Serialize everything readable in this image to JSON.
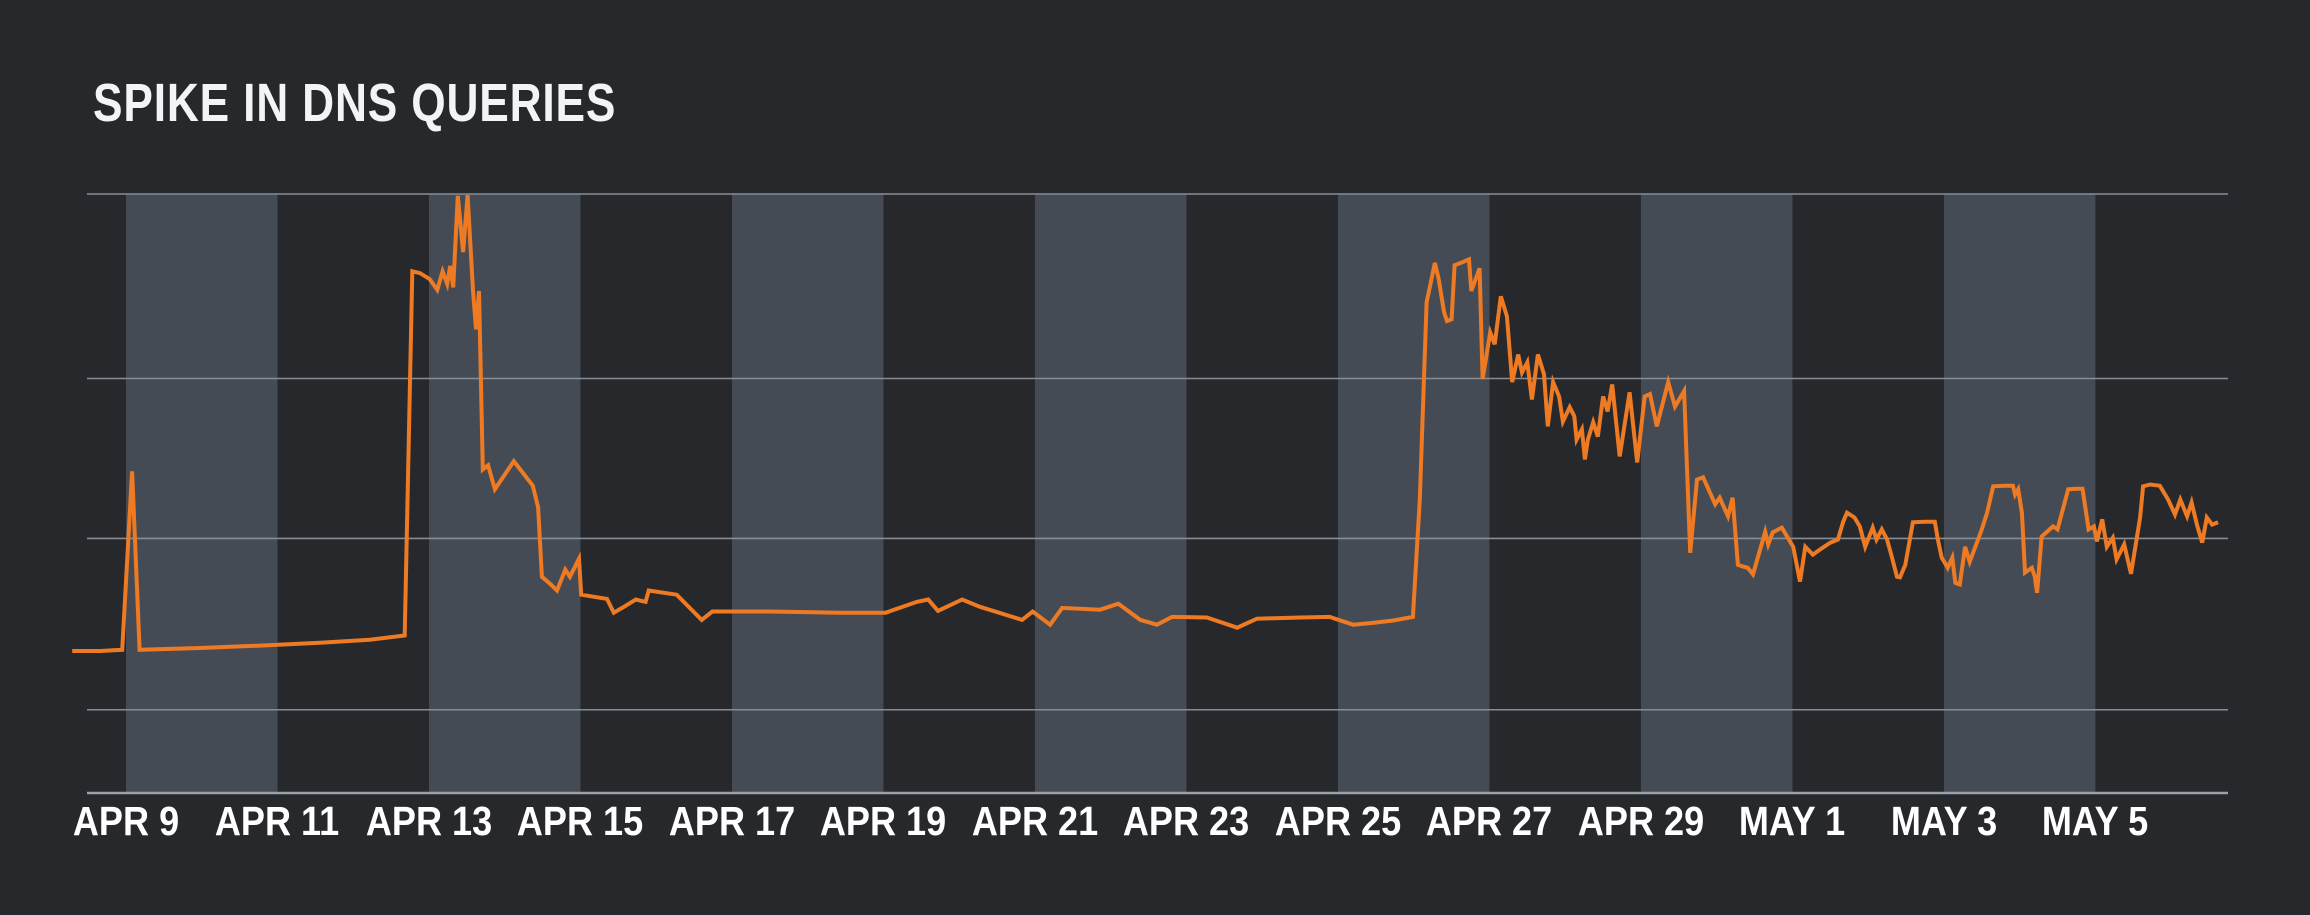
{
  "title": "SPIKE IN DNS QUERIES",
  "colors": {
    "background": "#26282c",
    "weekend_band": "#454b54",
    "gridline": "#868d95",
    "axis_line": "#9aa1a9",
    "line": "#ee7b23",
    "title_text": "#f3f4f6",
    "tick_text": "#ffffff"
  },
  "chart_data": {
    "type": "line",
    "title": "SPIKE IN DNS QUERIES",
    "xlabel": "",
    "ylabel": "",
    "legend_position": "none",
    "x_unit": "days (0 = APR 9, fractional = intra-day samples)",
    "x_range_days": [
      -0.75,
      27.75
    ],
    "y_axis_note": "no numeric labels shown; values are relative volume 0-100 (bottom axis to top gridline)",
    "ylim": [
      0,
      100
    ],
    "gridline_levels_pct": [
      0,
      13.9,
      42.5,
      69.2,
      100
    ],
    "grid": "horizontal only",
    "shaded_band_day_ranges": [
      [
        0,
        2
      ],
      [
        4,
        6
      ],
      [
        8,
        10
      ],
      [
        12,
        14
      ],
      [
        16,
        18
      ],
      [
        20,
        22
      ],
      [
        24,
        26
      ]
    ],
    "x_ticks": [
      {
        "label": "APR 9",
        "day": 0
      },
      {
        "label": "APR 11",
        "day": 2
      },
      {
        "label": "APR 13",
        "day": 4
      },
      {
        "label": "APR 15",
        "day": 6
      },
      {
        "label": "APR 17",
        "day": 8
      },
      {
        "label": "APR 19",
        "day": 10
      },
      {
        "label": "APR 21",
        "day": 12
      },
      {
        "label": "APR 23",
        "day": 14
      },
      {
        "label": "APR 25",
        "day": 16
      },
      {
        "label": "APR 27",
        "day": 18
      },
      {
        "label": "APR 29",
        "day": 20
      },
      {
        "label": "MAY 1",
        "day": 22
      },
      {
        "label": "MAY 3",
        "day": 24
      },
      {
        "label": "MAY 5",
        "day": 26
      }
    ],
    "series": [
      {
        "name": "DNS queries",
        "color": "#ee7b23",
        "points": [
          [
            -0.71,
            23.7
          ],
          [
            -0.34,
            23.7
          ],
          [
            -0.05,
            23.9
          ],
          [
            0.08,
            53.7
          ],
          [
            0.18,
            23.9
          ],
          [
            0.98,
            24.2
          ],
          [
            1.77,
            24.6
          ],
          [
            2.56,
            25.1
          ],
          [
            3.22,
            25.6
          ],
          [
            3.68,
            26.3
          ],
          [
            3.78,
            87.1
          ],
          [
            3.88,
            86.8
          ],
          [
            4.01,
            85.8
          ],
          [
            4.11,
            84.0
          ],
          [
            4.18,
            87.1
          ],
          [
            4.24,
            85.0
          ],
          [
            4.28,
            88.0
          ],
          [
            4.32,
            84.4
          ],
          [
            4.38,
            99.7
          ],
          [
            4.45,
            90.3
          ],
          [
            4.51,
            99.8
          ],
          [
            4.58,
            84.1
          ],
          [
            4.62,
            77.4
          ],
          [
            4.66,
            83.8
          ],
          [
            4.71,
            54.0
          ],
          [
            4.78,
            54.7
          ],
          [
            4.87,
            50.7
          ],
          [
            5.12,
            55.4
          ],
          [
            5.37,
            51.3
          ],
          [
            5.44,
            47.7
          ],
          [
            5.49,
            36.1
          ],
          [
            5.6,
            34.9
          ],
          [
            5.69,
            33.8
          ],
          [
            5.8,
            37.3
          ],
          [
            5.86,
            36.1
          ],
          [
            5.98,
            39.1
          ],
          [
            6.01,
            33.1
          ],
          [
            6.35,
            32.4
          ],
          [
            6.44,
            30.1
          ],
          [
            6.55,
            30.9
          ],
          [
            6.73,
            32.3
          ],
          [
            6.86,
            31.9
          ],
          [
            6.9,
            33.8
          ],
          [
            7.27,
            33.1
          ],
          [
            7.6,
            28.9
          ],
          [
            7.74,
            30.3
          ],
          [
            8.5,
            30.3
          ],
          [
            9.43,
            30.1
          ],
          [
            10.03,
            30.1
          ],
          [
            10.44,
            31.9
          ],
          [
            10.59,
            32.3
          ],
          [
            10.72,
            30.4
          ],
          [
            11.04,
            32.3
          ],
          [
            11.27,
            31.1
          ],
          [
            11.83,
            28.9
          ],
          [
            11.97,
            30.3
          ],
          [
            12.2,
            28.1
          ],
          [
            12.36,
            30.9
          ],
          [
            12.86,
            30.6
          ],
          [
            13.1,
            31.6
          ],
          [
            13.39,
            28.9
          ],
          [
            13.61,
            28.1
          ],
          [
            13.81,
            29.4
          ],
          [
            14.27,
            29.3
          ],
          [
            14.67,
            27.6
          ],
          [
            14.93,
            29.1
          ],
          [
            15.5,
            29.3
          ],
          [
            15.89,
            29.4
          ],
          [
            16.2,
            28.1
          ],
          [
            16.46,
            28.4
          ],
          [
            16.73,
            28.8
          ],
          [
            16.99,
            29.4
          ],
          [
            17.08,
            49.0
          ],
          [
            17.17,
            81.9
          ],
          [
            17.28,
            88.5
          ],
          [
            17.33,
            85.8
          ],
          [
            17.4,
            80.3
          ],
          [
            17.44,
            78.8
          ],
          [
            17.5,
            79.1
          ],
          [
            17.54,
            88.1
          ],
          [
            17.64,
            88.6
          ],
          [
            17.73,
            89.1
          ],
          [
            17.76,
            83.8
          ],
          [
            17.87,
            87.6
          ],
          [
            17.91,
            69.1
          ],
          [
            18.01,
            76.9
          ],
          [
            18.07,
            74.9
          ],
          [
            18.15,
            82.9
          ],
          [
            18.23,
            79.6
          ],
          [
            18.3,
            68.6
          ],
          [
            18.38,
            73.2
          ],
          [
            18.43,
            70.2
          ],
          [
            18.5,
            71.9
          ],
          [
            18.56,
            65.7
          ],
          [
            18.64,
            73.2
          ],
          [
            18.72,
            69.9
          ],
          [
            18.77,
            61.2
          ],
          [
            18.84,
            68.6
          ],
          [
            18.92,
            66.2
          ],
          [
            18.97,
            62.0
          ],
          [
            19.06,
            64.4
          ],
          [
            19.12,
            62.9
          ],
          [
            19.15,
            59.0
          ],
          [
            19.22,
            60.7
          ],
          [
            19.26,
            55.7
          ],
          [
            19.3,
            59.0
          ],
          [
            19.37,
            61.9
          ],
          [
            19.43,
            59.5
          ],
          [
            19.5,
            66.2
          ],
          [
            19.56,
            63.7
          ],
          [
            19.62,
            68.2
          ],
          [
            19.72,
            56.2
          ],
          [
            19.85,
            66.9
          ],
          [
            19.95,
            55.2
          ],
          [
            20.05,
            66.2
          ],
          [
            20.12,
            66.6
          ],
          [
            20.21,
            61.2
          ],
          [
            20.36,
            68.6
          ],
          [
            20.45,
            64.5
          ],
          [
            20.57,
            67.1
          ],
          [
            20.65,
            40.1
          ],
          [
            20.74,
            52.3
          ],
          [
            20.82,
            52.7
          ],
          [
            20.98,
            48.2
          ],
          [
            21.04,
            49.3
          ],
          [
            21.15,
            46.2
          ],
          [
            21.21,
            49.3
          ],
          [
            21.28,
            38.1
          ],
          [
            21.35,
            37.8
          ],
          [
            21.41,
            37.6
          ],
          [
            21.48,
            36.5
          ],
          [
            21.64,
            43.6
          ],
          [
            21.68,
            41.5
          ],
          [
            21.74,
            43.5
          ],
          [
            21.86,
            44.3
          ],
          [
            22.01,
            41.1
          ],
          [
            22.1,
            35.3
          ],
          [
            22.17,
            41.1
          ],
          [
            22.27,
            39.8
          ],
          [
            22.36,
            40.6
          ],
          [
            22.5,
            41.8
          ],
          [
            22.6,
            42.3
          ],
          [
            22.67,
            45.3
          ],
          [
            22.72,
            46.8
          ],
          [
            22.82,
            46.0
          ],
          [
            22.89,
            44.5
          ],
          [
            22.96,
            41.1
          ],
          [
            23.06,
            44.3
          ],
          [
            23.11,
            42.3
          ],
          [
            23.18,
            44.0
          ],
          [
            23.25,
            42.3
          ],
          [
            23.31,
            39.5
          ],
          [
            23.38,
            36.1
          ],
          [
            23.42,
            36.0
          ],
          [
            23.49,
            38.1
          ],
          [
            23.59,
            45.2
          ],
          [
            23.75,
            45.3
          ],
          [
            23.88,
            45.3
          ],
          [
            23.92,
            42.3
          ],
          [
            23.97,
            39.3
          ],
          [
            24.05,
            37.6
          ],
          [
            24.11,
            39.3
          ],
          [
            24.15,
            35.1
          ],
          [
            24.21,
            34.8
          ],
          [
            24.28,
            41.1
          ],
          [
            24.34,
            38.6
          ],
          [
            24.45,
            42.3
          ],
          [
            24.5,
            44.0
          ],
          [
            24.57,
            46.8
          ],
          [
            24.65,
            51.2
          ],
          [
            24.81,
            51.3
          ],
          [
            24.91,
            51.3
          ],
          [
            24.94,
            49.8
          ],
          [
            24.98,
            50.7
          ],
          [
            25.03,
            46.8
          ],
          [
            25.07,
            36.8
          ],
          [
            25.16,
            37.6
          ],
          [
            25.2,
            36.1
          ],
          [
            25.23,
            33.4
          ],
          [
            25.29,
            42.8
          ],
          [
            25.44,
            44.5
          ],
          [
            25.5,
            44.0
          ],
          [
            25.64,
            50.7
          ],
          [
            25.75,
            50.8
          ],
          [
            25.83,
            50.8
          ],
          [
            25.91,
            44.0
          ],
          [
            25.98,
            44.5
          ],
          [
            26.02,
            42.0
          ],
          [
            26.09,
            45.7
          ],
          [
            26.15,
            41.1
          ],
          [
            26.23,
            42.6
          ],
          [
            26.28,
            39.0
          ],
          [
            26.38,
            41.5
          ],
          [
            26.47,
            36.6
          ],
          [
            26.59,
            46.0
          ],
          [
            26.63,
            51.2
          ],
          [
            26.72,
            51.5
          ],
          [
            26.85,
            51.3
          ],
          [
            26.96,
            49.0
          ],
          [
            27.05,
            46.5
          ],
          [
            27.12,
            49.0
          ],
          [
            27.21,
            46.2
          ],
          [
            27.27,
            48.5
          ],
          [
            27.34,
            44.8
          ],
          [
            27.41,
            41.8
          ],
          [
            27.47,
            46.0
          ],
          [
            27.54,
            44.8
          ],
          [
            27.62,
            45.2
          ]
        ]
      }
    ]
  }
}
